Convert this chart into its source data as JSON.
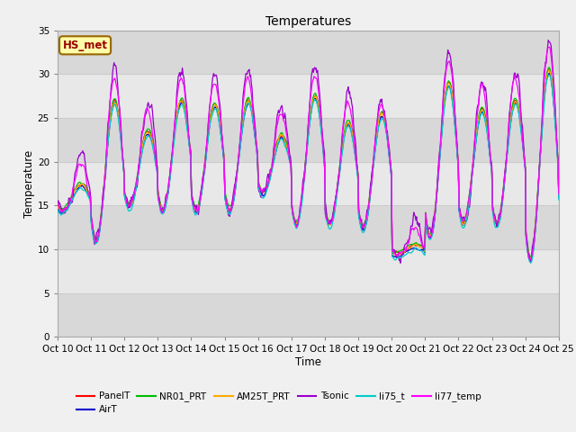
{
  "title": "Temperatures",
  "xlabel": "Time",
  "ylabel": "Temperature",
  "ylim": [
    0,
    35
  ],
  "yticks": [
    0,
    5,
    10,
    15,
    20,
    25,
    30,
    35
  ],
  "series_names": [
    "PanelT",
    "AirT",
    "NR01_PRT",
    "AM25T_PRT",
    "Tsonic",
    "li75_t",
    "li77_temp"
  ],
  "series_colors": [
    "#ff0000",
    "#0000cc",
    "#00bb00",
    "#ffaa00",
    "#9900cc",
    "#00cccc",
    "#ff00ff"
  ],
  "annotation_text": "HS_met",
  "annotation_bg": "#ffffaa",
  "annotation_border": "#996600",
  "annotation_text_color": "#990000",
  "x_start": 10,
  "x_end": 25,
  "x_ticks": [
    10,
    11,
    12,
    13,
    14,
    15,
    16,
    17,
    18,
    19,
    20,
    21,
    22,
    23,
    24,
    25
  ],
  "x_tick_labels": [
    "Oct 10",
    "Oct 11",
    "Oct 12",
    "Oct 13",
    "Oct 14",
    "Oct 15",
    "Oct 16",
    "Oct 17",
    "Oct 18",
    "Oct 19",
    "Oct 20",
    "Oct 21",
    "Oct 22",
    "Oct 23",
    "Oct 24",
    "Oct 25"
  ],
  "figsize": [
    6.4,
    4.8
  ],
  "dpi": 100,
  "bg_bands": [
    [
      0,
      5,
      "#d8d8d8"
    ],
    [
      5,
      10,
      "#e8e8e8"
    ],
    [
      10,
      15,
      "#d8d8d8"
    ],
    [
      15,
      20,
      "#e8e8e8"
    ],
    [
      20,
      25,
      "#d8d8d8"
    ],
    [
      25,
      30,
      "#e8e8e8"
    ],
    [
      30,
      35,
      "#d8d8d8"
    ]
  ]
}
